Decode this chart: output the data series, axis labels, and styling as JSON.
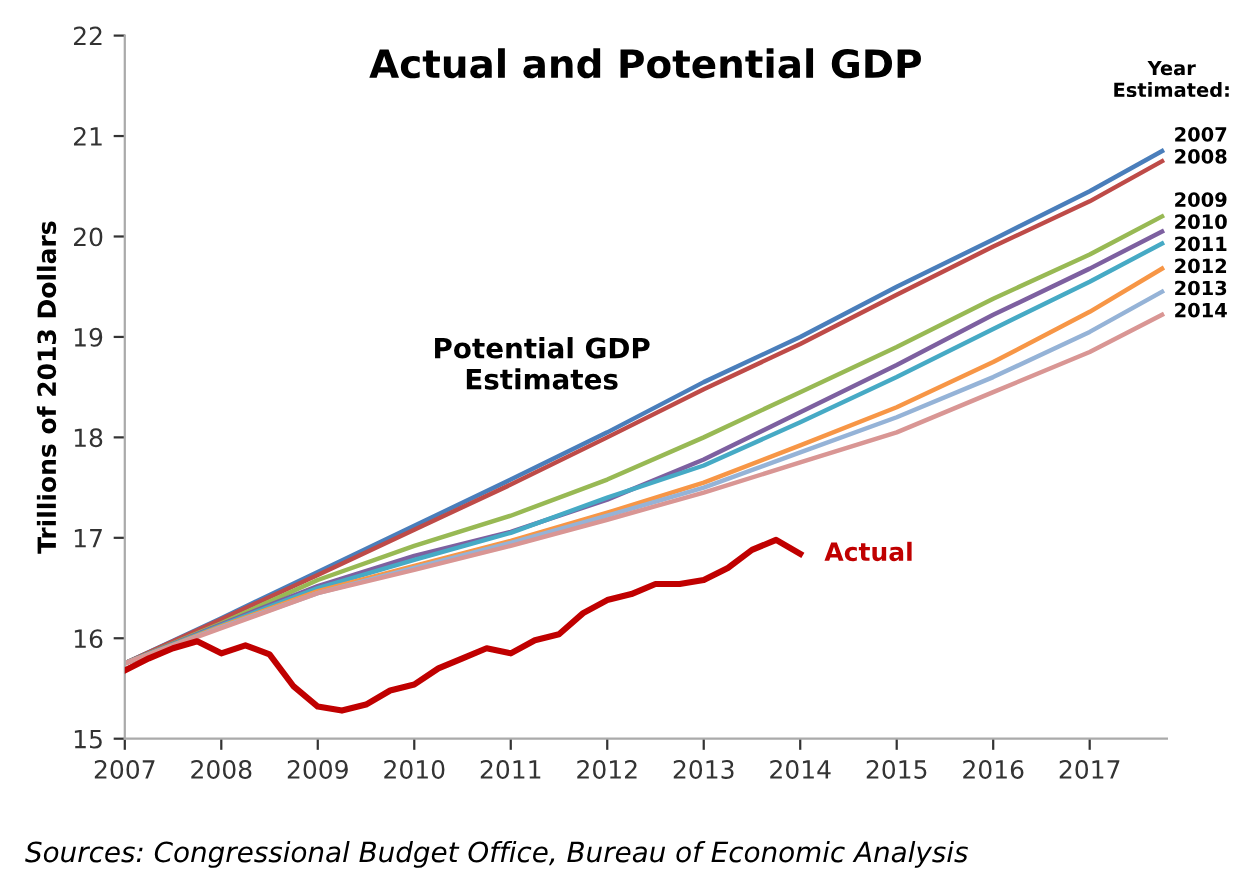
{
  "chart_data": {
    "type": "line",
    "title": "Actual and Potential GDP",
    "ylabel": "Trillions of 2013 Dollars",
    "legend_title": "Year\nEstimated:",
    "xlim": [
      2007,
      2017.8
    ],
    "xticks": [
      2007,
      2008,
      2009,
      2010,
      2011,
      2012,
      2013,
      2014,
      2015,
      2016,
      2017
    ],
    "ylim": [
      15,
      22
    ],
    "yticks": [
      15,
      16,
      17,
      18,
      19,
      20,
      21,
      22
    ],
    "grid": false,
    "legend": false,
    "marker": "none",
    "line_style": "solid",
    "x": [
      2007,
      2008,
      2009,
      2010,
      2011,
      2012,
      2013,
      2014,
      2015,
      2016,
      2017,
      2017.75
    ],
    "series": [
      {
        "name": "2007",
        "color": "#4a7ebb",
        "values": [
          15.75,
          16.2,
          16.66,
          17.12,
          17.58,
          18.05,
          18.55,
          19.0,
          19.5,
          19.97,
          20.45,
          20.85
        ]
      },
      {
        "name": "2008",
        "color": "#be4b48",
        "values": [
          15.75,
          16.19,
          16.63,
          17.08,
          17.53,
          18.0,
          18.48,
          18.93,
          19.42,
          19.9,
          20.35,
          20.75
        ]
      },
      {
        "name": "2009",
        "color": "#98b954",
        "values": [
          15.75,
          16.15,
          16.58,
          16.92,
          17.22,
          17.58,
          18.0,
          18.45,
          18.9,
          19.38,
          19.82,
          20.2
        ]
      },
      {
        "name": "2010",
        "color": "#7d60a0",
        "values": [
          15.75,
          16.14,
          16.52,
          16.82,
          17.06,
          17.38,
          17.78,
          18.25,
          18.72,
          19.22,
          19.68,
          20.05
        ]
      },
      {
        "name": "2011",
        "color": "#46aac5",
        "values": [
          15.75,
          16.13,
          16.5,
          16.78,
          17.05,
          17.4,
          17.72,
          18.15,
          18.6,
          19.08,
          19.55,
          19.93
        ]
      },
      {
        "name": "2012",
        "color": "#f79646",
        "values": [
          15.75,
          16.12,
          16.47,
          16.72,
          16.97,
          17.25,
          17.55,
          17.92,
          18.3,
          18.75,
          19.25,
          19.68
        ]
      },
      {
        "name": "2013",
        "color": "#95b3d7",
        "values": [
          15.75,
          16.11,
          16.45,
          16.7,
          16.95,
          17.22,
          17.5,
          17.85,
          18.2,
          18.6,
          19.05,
          19.45
        ]
      },
      {
        "name": "2014",
        "color": "#d99694",
        "values": [
          15.75,
          16.1,
          16.45,
          16.68,
          16.92,
          17.18,
          17.45,
          17.75,
          18.05,
          18.45,
          18.85,
          19.22
        ]
      },
      {
        "name": "Actual",
        "color": "#c00000",
        "x": [
          2007,
          2007.25,
          2007.5,
          2007.75,
          2008,
          2008.25,
          2008.5,
          2008.75,
          2009,
          2009.25,
          2009.5,
          2009.75,
          2010,
          2010.25,
          2010.5,
          2010.75,
          2011,
          2011.25,
          2011.5,
          2011.75,
          2012,
          2012.25,
          2012.5,
          2012.75,
          2013,
          2013.25,
          2013.5,
          2013.75,
          2014
        ],
        "values": [
          15.68,
          15.8,
          15.9,
          15.97,
          15.85,
          15.93,
          15.84,
          15.52,
          15.32,
          15.28,
          15.34,
          15.48,
          15.54,
          15.7,
          15.8,
          15.9,
          15.85,
          15.98,
          16.04,
          16.25,
          16.38,
          16.44,
          16.54,
          16.54,
          16.58,
          16.7,
          16.88,
          16.98,
          16.84
        ]
      }
    ],
    "annotations": [
      "Potential GDP\nEstimates",
      "Sources: Congressional Budget Office, Bureau of Economic Analysis"
    ]
  }
}
